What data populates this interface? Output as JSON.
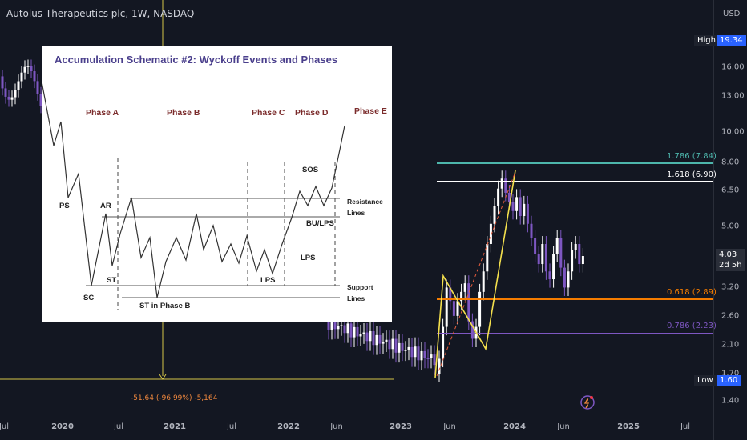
{
  "header": {
    "title": "Autolus Therapeutics plc, 1W, NASDAQ"
  },
  "price_axis": {
    "currency": "USD",
    "ticks": [
      "16.00",
      "13.00",
      "10.00",
      "8.00",
      "6.50",
      "5.00",
      "4.03",
      "3.20",
      "2.60",
      "2.10",
      "1.70",
      "1.40"
    ],
    "high_label": "High",
    "high_value": "19.34",
    "low_label": "Low",
    "low_value": "1.60",
    "current_price": "4.03",
    "countdown": "2d 5h"
  },
  "time_axis": {
    "ticks": [
      "Jul",
      "2020",
      "Jul",
      "2021",
      "Jul",
      "2022",
      "Jun",
      "2023",
      "Jun",
      "2024",
      "Jun",
      "2025",
      "Jul"
    ]
  },
  "fib_levels": [
    {
      "label": "1.786 (7.84)",
      "color": "#4db6ac"
    },
    {
      "label": "1.618 (6.90)",
      "color": "#ffffff"
    },
    {
      "label": "0.618 (2.89)",
      "color": "#f57c00"
    },
    {
      "label": "0.786 (2.23)",
      "color": "#7e57c2"
    }
  ],
  "measure_label": "-51.64 (-96.99%) -5,164",
  "inset": {
    "title": "Accumulation Schematic #2: Wyckoff Events and Phases",
    "phases": [
      "Phase A",
      "Phase B",
      "Phase C",
      "Phase D",
      "Phase E"
    ],
    "events": [
      "PS",
      "AR",
      "SC",
      "ST",
      "ST in Phase B",
      "LPS",
      "LPS",
      "SOS",
      "BU/LPS"
    ],
    "right_labels": [
      "Resistance",
      "Lines",
      "Support",
      "Lines"
    ]
  },
  "chart_data": {
    "type": "candlestick",
    "title": "Autolus Therapeutics plc, 1W, NASDAQ",
    "y_scale": "log",
    "currency": "USD",
    "x_ticks": [
      "Jul",
      "2020",
      "Jul",
      "2021",
      "Jul",
      "2022",
      "Jun",
      "2023",
      "Jun",
      "2024",
      "Jun",
      "2025",
      "Jul"
    ],
    "y_ticks": [
      16.0,
      13.0,
      10.0,
      8.0,
      6.5,
      5.0,
      3.2,
      2.6,
      2.1,
      1.7,
      1.4
    ],
    "high": 19.34,
    "low": 1.6,
    "last": 4.03,
    "fibonacci": [
      {
        "ratio": 1.786,
        "price": 7.84
      },
      {
        "ratio": 1.618,
        "price": 6.9
      },
      {
        "ratio": 0.618,
        "price": 2.89
      },
      {
        "ratio": 0.786,
        "price": 2.23
      }
    ]
  }
}
